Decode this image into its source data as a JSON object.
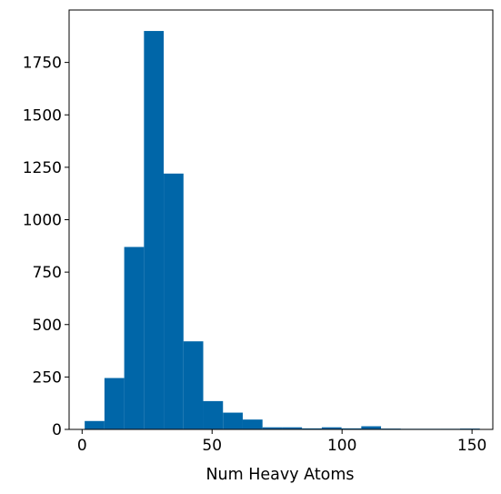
{
  "chart_data": {
    "type": "bar",
    "title": "",
    "xlabel": "Num Heavy Atoms",
    "ylabel": "",
    "xlim": [
      -5,
      158
    ],
    "ylim": [
      0,
      2000
    ],
    "xticks": [
      0,
      50,
      100,
      150
    ],
    "xtick_labels": [
      "0",
      "50",
      "100",
      "150"
    ],
    "yticks": [
      0,
      250,
      500,
      750,
      1000,
      1250,
      1500,
      1750
    ],
    "ytick_labels": [
      "0",
      "250",
      "500",
      "750",
      "1000",
      "1250",
      "1500",
      "1750"
    ],
    "grid": false,
    "bar_color": "#0066a8",
    "bins": [
      {
        "x0": 1.0,
        "x1": 8.6,
        "count": 40
      },
      {
        "x0": 8.6,
        "x1": 16.2,
        "count": 245
      },
      {
        "x0": 16.2,
        "x1": 23.8,
        "count": 870
      },
      {
        "x0": 23.8,
        "x1": 31.4,
        "count": 1900
      },
      {
        "x0": 31.4,
        "x1": 39.0,
        "count": 1220
      },
      {
        "x0": 39.0,
        "x1": 46.6,
        "count": 420
      },
      {
        "x0": 46.6,
        "x1": 54.2,
        "count": 135
      },
      {
        "x0": 54.2,
        "x1": 61.8,
        "count": 80
      },
      {
        "x0": 61.8,
        "x1": 69.4,
        "count": 47
      },
      {
        "x0": 69.4,
        "x1": 77.0,
        "count": 10
      },
      {
        "x0": 77.0,
        "x1": 84.6,
        "count": 10
      },
      {
        "x0": 84.6,
        "x1": 92.2,
        "count": 5
      },
      {
        "x0": 92.2,
        "x1": 99.8,
        "count": 10
      },
      {
        "x0": 99.8,
        "x1": 107.4,
        "count": 5
      },
      {
        "x0": 107.4,
        "x1": 115.0,
        "count": 15
      },
      {
        "x0": 115.0,
        "x1": 122.6,
        "count": 4
      },
      {
        "x0": 122.6,
        "x1": 130.2,
        "count": 3
      },
      {
        "x0": 130.2,
        "x1": 137.8,
        "count": 3
      },
      {
        "x0": 137.8,
        "x1": 145.4,
        "count": 3
      },
      {
        "x0": 145.4,
        "x1": 153.0,
        "count": 4
      }
    ]
  }
}
